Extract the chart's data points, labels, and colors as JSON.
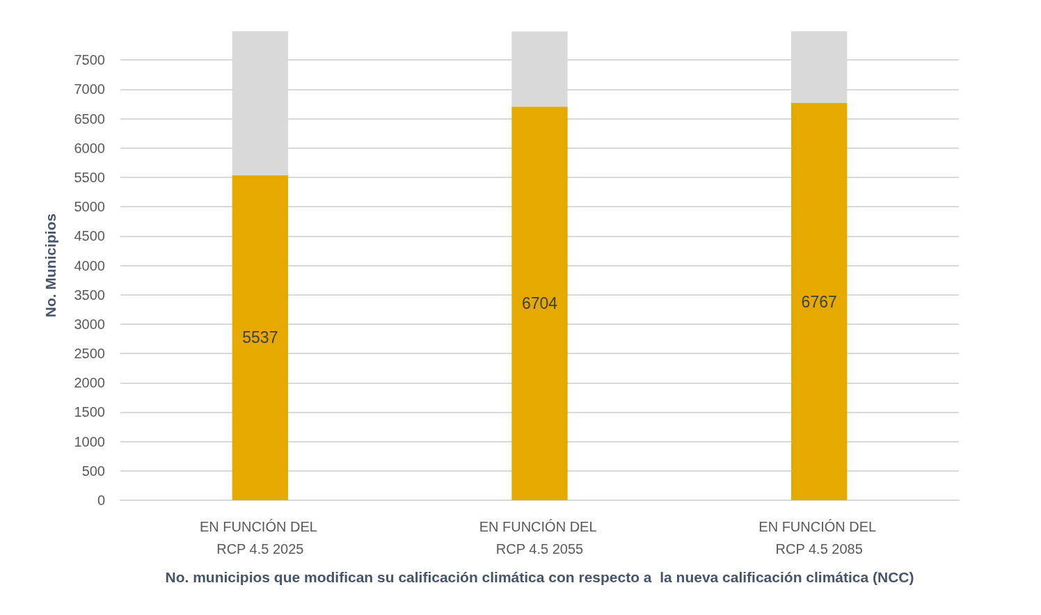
{
  "chart_data": {
    "type": "bar",
    "stacked": true,
    "xlabel": "No. municipios que modifican su calificación climática con respecto a  la nueva calificación climática (NCC)",
    "ylabel": "No. Municipios",
    "categories": [
      "EN FUNCIÓN DEL RCP 4.5 2025",
      "EN FUNCIÓN DEL RCP 4.5 2055",
      "EN FUNCIÓN DEL RCP 4.5 2085"
    ],
    "series": [
      {
        "color": "#e6a900",
        "values": [
          5537,
          6704,
          6767
        ],
        "value_labels": [
          "5537",
          "6704",
          "6767"
        ]
      },
      {
        "color": "#d9d9d9",
        "values": [
          2450,
          1280,
          1220
        ]
      }
    ],
    "ylim": [
      0,
      8000
    ],
    "yticks": [
      0,
      500,
      1000,
      1500,
      2000,
      2500,
      3000,
      3500,
      4000,
      4500,
      5000,
      5500,
      6000,
      6500,
      7000,
      7500
    ],
    "grid": "y"
  }
}
